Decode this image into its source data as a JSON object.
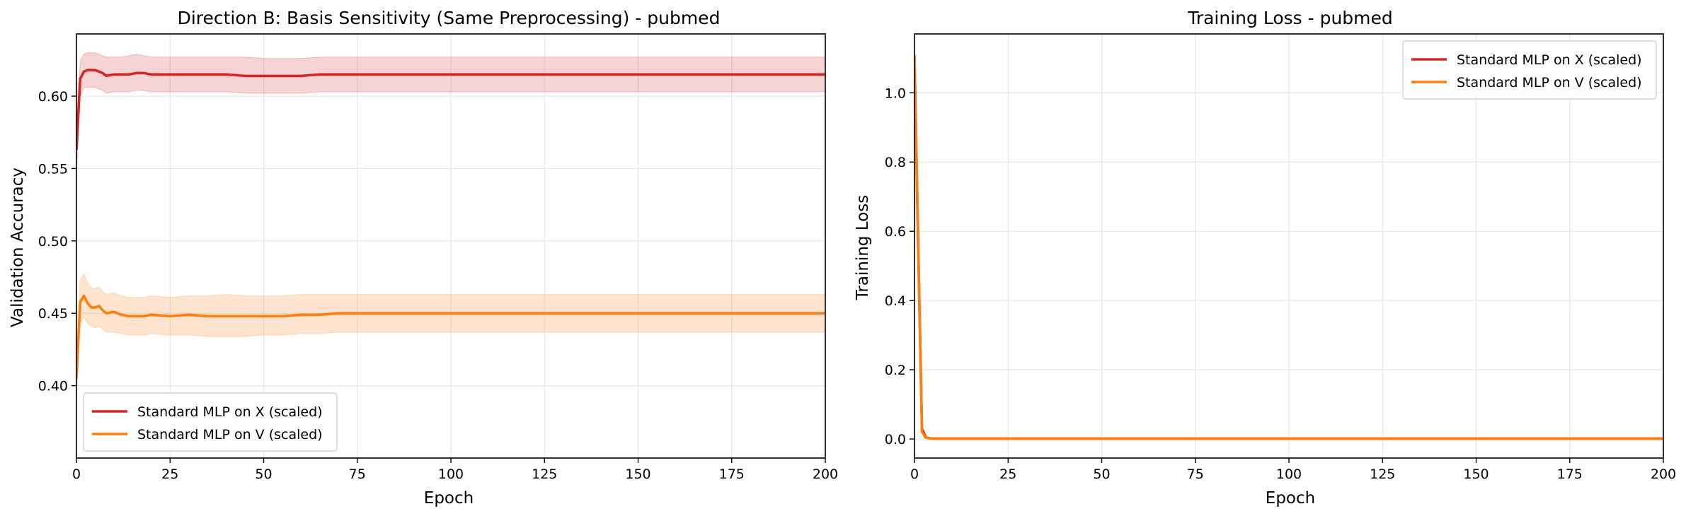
{
  "chart_data": [
    {
      "type": "line",
      "title": "Direction B: Basis Sensitivity (Same Preprocessing) - pubmed",
      "xlabel": "Epoch",
      "ylabel": "Validation Accuracy",
      "xlim": [
        0,
        200
      ],
      "ylim": [
        0.35,
        0.643
      ],
      "xticks": [
        0,
        25,
        50,
        75,
        100,
        125,
        150,
        175,
        200
      ],
      "yticks": [
        0.4,
        0.45,
        0.5,
        0.55,
        0.6
      ],
      "ytick_decimals": 2,
      "grid": true,
      "legend_position": "lower-left",
      "series": [
        {
          "name": "Standard MLP on X (scaled)",
          "color": "#d62728",
          "x": [
            0,
            1,
            2,
            3,
            4,
            5,
            6,
            7,
            8,
            10,
            12,
            14,
            16,
            18,
            20,
            25,
            30,
            35,
            40,
            45,
            50,
            55,
            60,
            65,
            70,
            75,
            100,
            125,
            150,
            175,
            200
          ],
          "mean": [
            0.563,
            0.612,
            0.617,
            0.618,
            0.618,
            0.618,
            0.617,
            0.616,
            0.614,
            0.615,
            0.615,
            0.615,
            0.616,
            0.616,
            0.615,
            0.615,
            0.615,
            0.615,
            0.615,
            0.614,
            0.614,
            0.614,
            0.614,
            0.615,
            0.615,
            0.615,
            0.615,
            0.615,
            0.615,
            0.615,
            0.615
          ],
          "lower": [
            0.545,
            0.6,
            0.606,
            0.606,
            0.606,
            0.606,
            0.605,
            0.604,
            0.602,
            0.603,
            0.603,
            0.603,
            0.604,
            0.604,
            0.603,
            0.603,
            0.603,
            0.603,
            0.603,
            0.602,
            0.602,
            0.602,
            0.602,
            0.603,
            0.603,
            0.603,
            0.603,
            0.603,
            0.603,
            0.603,
            0.603
          ],
          "upper": [
            0.58,
            0.624,
            0.629,
            0.63,
            0.63,
            0.63,
            0.629,
            0.628,
            0.627,
            0.627,
            0.627,
            0.628,
            0.629,
            0.628,
            0.627,
            0.627,
            0.627,
            0.627,
            0.627,
            0.627,
            0.626,
            0.626,
            0.626,
            0.627,
            0.627,
            0.627,
            0.627,
            0.627,
            0.627,
            0.627,
            0.627
          ]
        },
        {
          "name": "Standard MLP on V (scaled)",
          "color": "#ff7f0e",
          "x": [
            0,
            1,
            2,
            3,
            4,
            5,
            6,
            7,
            8,
            10,
            12,
            14,
            16,
            18,
            20,
            25,
            30,
            35,
            40,
            45,
            50,
            55,
            60,
            65,
            70,
            75,
            100,
            125,
            150,
            175,
            200
          ],
          "mean": [
            0.405,
            0.458,
            0.462,
            0.457,
            0.454,
            0.454,
            0.455,
            0.452,
            0.45,
            0.451,
            0.449,
            0.448,
            0.448,
            0.448,
            0.449,
            0.448,
            0.449,
            0.448,
            0.448,
            0.448,
            0.448,
            0.448,
            0.449,
            0.449,
            0.45,
            0.45,
            0.45,
            0.45,
            0.45,
            0.45,
            0.45
          ],
          "lower": [
            0.39,
            0.443,
            0.447,
            0.443,
            0.441,
            0.44,
            0.441,
            0.439,
            0.437,
            0.437,
            0.436,
            0.435,
            0.435,
            0.435,
            0.436,
            0.435,
            0.435,
            0.434,
            0.434,
            0.434,
            0.435,
            0.435,
            0.436,
            0.436,
            0.437,
            0.437,
            0.437,
            0.437,
            0.437,
            0.437,
            0.437
          ],
          "upper": [
            0.42,
            0.473,
            0.477,
            0.471,
            0.467,
            0.467,
            0.468,
            0.465,
            0.463,
            0.464,
            0.462,
            0.461,
            0.461,
            0.461,
            0.462,
            0.461,
            0.462,
            0.462,
            0.463,
            0.462,
            0.462,
            0.462,
            0.463,
            0.463,
            0.463,
            0.463,
            0.463,
            0.463,
            0.463,
            0.463,
            0.463
          ]
        }
      ]
    },
    {
      "type": "line",
      "title": "Training Loss - pubmed",
      "xlabel": "Epoch",
      "ylabel": "Training Loss",
      "xlim": [
        0,
        200
      ],
      "ylim": [
        -0.055,
        1.17
      ],
      "xticks": [
        0,
        25,
        50,
        75,
        100,
        125,
        150,
        175,
        200
      ],
      "yticks": [
        0.0,
        0.2,
        0.4,
        0.6,
        0.8,
        1.0
      ],
      "ytick_decimals": 1,
      "grid": true,
      "legend_position": "top-right",
      "series": [
        {
          "name": "Standard MLP on X (scaled)",
          "color": "#d62728",
          "x": [
            0,
            1,
            2,
            3,
            4,
            5,
            10,
            25,
            50,
            100,
            150,
            200
          ],
          "mean": [
            1.1,
            0.55,
            0.03,
            0.005,
            0.002,
            0.001,
            0.001,
            0.001,
            0.001,
            0.001,
            0.001,
            0.001
          ]
        },
        {
          "name": "Standard MLP on V (scaled)",
          "color": "#ff7f0e",
          "x": [
            0,
            1,
            2,
            3,
            4,
            5,
            10,
            25,
            50,
            100,
            150,
            200
          ],
          "mean": [
            1.11,
            0.57,
            0.02,
            0.004,
            0.002,
            0.001,
            0.001,
            0.001,
            0.001,
            0.001,
            0.001,
            0.001
          ]
        }
      ]
    }
  ]
}
